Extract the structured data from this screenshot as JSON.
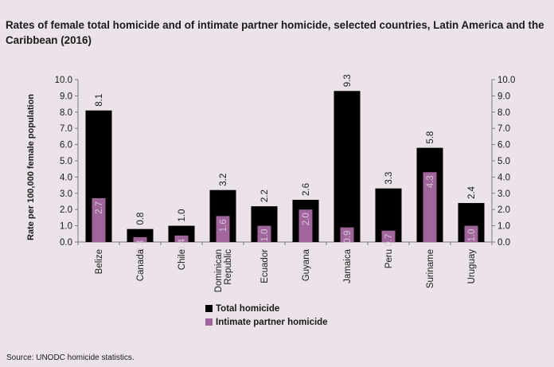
{
  "chart_data": {
    "type": "bar",
    "title": "Rates of female total homicide and of intimate partner homicide, selected countries, Latin America and the Caribbean (2016)",
    "ylabel": "Rate per 100,000 female population",
    "xlabel": "",
    "ylim": [
      0,
      10
    ],
    "yticks": [
      "0.0",
      "1.0",
      "2.0",
      "3.0",
      "4.0",
      "5.0",
      "6.0",
      "7.0",
      "8.0",
      "9.0",
      "10.0"
    ],
    "secondary_axis": true,
    "grid": false,
    "legend_position": "bottom",
    "categories": [
      "Belize",
      "Canada",
      "Chile",
      "Dominican Republic",
      "Ecuador",
      "Guyana",
      "Jamaica",
      "Peru",
      "Suriname",
      "Uruguay"
    ],
    "series": [
      {
        "name": "Total homicide",
        "color": "#000000",
        "values": [
          8.1,
          0.8,
          1.0,
          3.2,
          2.2,
          2.6,
          9.3,
          3.3,
          5.8,
          2.4
        ],
        "labels": [
          "8.1",
          "0.8",
          "1.0",
          "3.2",
          "2.2",
          "2.6",
          "9.3",
          "3.3",
          "5.8",
          "2.4"
        ]
      },
      {
        "name": "Intimate partner homicide",
        "color": "#a0659a",
        "values": [
          2.7,
          0.3,
          0.4,
          1.6,
          1.0,
          2.0,
          0.9,
          0.7,
          4.3,
          1.0
        ],
        "labels": [
          "2.7",
          "0.3",
          "0.4",
          "1.6",
          "1.0",
          "2.0",
          "0.9",
          "0.7",
          "4.3",
          "1.0"
        ]
      }
    ]
  },
  "source": "Source: UNODC homicide statistics."
}
